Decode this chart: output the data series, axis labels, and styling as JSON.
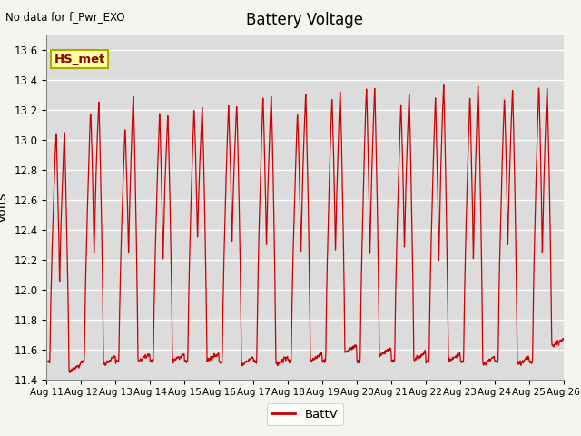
{
  "title": "Battery Voltage",
  "annotation": "No data for f_Pwr_EXO",
  "ylabel": "Volts",
  "legend_label": "BattV",
  "legend_line_color": "#cc0000",
  "line_color": "#cc0000",
  "bg_color": "#dcdcdc",
  "fig_bg_color": "#f5f5f0",
  "ylim": [
    11.4,
    13.7
  ],
  "yticks": [
    11.4,
    11.6,
    11.8,
    12.0,
    12.2,
    12.4,
    12.6,
    12.8,
    13.0,
    13.2,
    13.4,
    13.6
  ],
  "xtick_labels": [
    "Aug 11",
    "Aug 12",
    "Aug 13",
    "Aug 14",
    "Aug 15",
    "Aug 16",
    "Aug 17",
    "Aug 18",
    "Aug 19",
    "Aug 20",
    "Aug 21",
    "Aug 22",
    "Aug 23",
    "Aug 24",
    "Aug 25",
    "Aug 26"
  ],
  "hs_met_label": "HS_met",
  "hs_met_box_color": "#ffffa0",
  "hs_met_text_color": "#880000",
  "hs_met_edge_color": "#aaaa00"
}
